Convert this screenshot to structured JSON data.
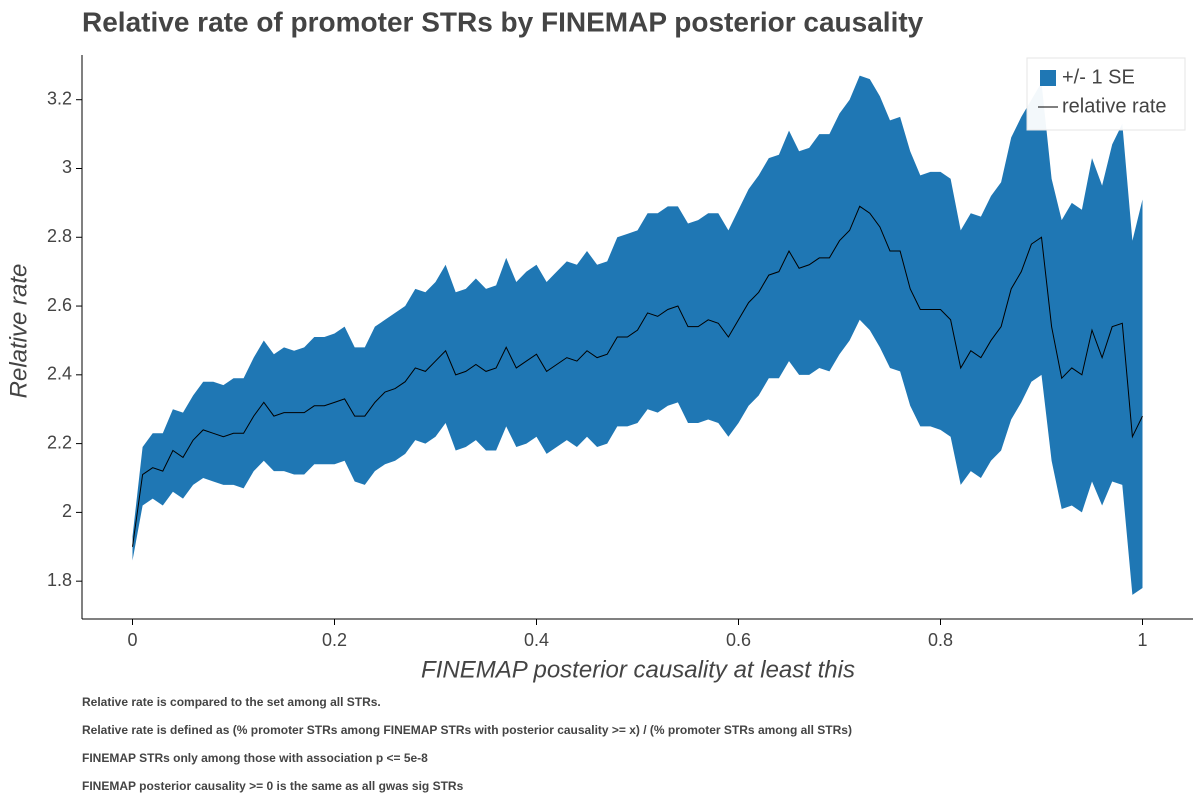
{
  "chart_data": {
    "type": "line",
    "title": "Relative rate of promoter STRs by FINEMAP posterior causality",
    "x_label": "FINEMAP posterior causality at least this",
    "y_label": "Relative rate",
    "notes": [
      "Relative rate is compared to the set among all STRs.",
      "Relative rate is defined as (% promoter STRs among FINEMAP STRs with posterior causality >= x) / (% promoter STRs among all STRs)",
      "FINEMAP STRs only among those with association p <= 5e-8",
      "FINEMAP posterior causality >= 0 is the same as all gwas sig STRs"
    ],
    "legend": "top-right",
    "xlim": [
      -0.05,
      1.05
    ],
    "ylim": [
      1.69,
      3.33
    ],
    "xticks": [
      0,
      0.2,
      0.4,
      0.6,
      0.8,
      1
    ],
    "yticks": [
      1.8,
      2,
      2.2,
      2.4,
      2.6,
      2.8,
      3,
      3.2
    ],
    "x": [
      0,
      0.01,
      0.02,
      0.03,
      0.04,
      0.05,
      0.06,
      0.07,
      0.08,
      0.09,
      0.1,
      0.11,
      0.12,
      0.13,
      0.14,
      0.15,
      0.16,
      0.17,
      0.18,
      0.19,
      0.2,
      0.21,
      0.22,
      0.23,
      0.24,
      0.25,
      0.26,
      0.27,
      0.28,
      0.29,
      0.3,
      0.31,
      0.32,
      0.33,
      0.34,
      0.35,
      0.36,
      0.37,
      0.38,
      0.39,
      0.4,
      0.41,
      0.42,
      0.43,
      0.44,
      0.45,
      0.46,
      0.47,
      0.48,
      0.49,
      0.5,
      0.51,
      0.52,
      0.53,
      0.54,
      0.55,
      0.56,
      0.57,
      0.58,
      0.59,
      0.6,
      0.61,
      0.62,
      0.63,
      0.64,
      0.65,
      0.66,
      0.67,
      0.68,
      0.69,
      0.7,
      0.71,
      0.72,
      0.73,
      0.74,
      0.75,
      0.76,
      0.77,
      0.78,
      0.79,
      0.8,
      0.81,
      0.82,
      0.83,
      0.84,
      0.85,
      0.86,
      0.87,
      0.88,
      0.89,
      0.9,
      0.91,
      0.92,
      0.93,
      0.94,
      0.95,
      0.96,
      0.97,
      0.98,
      0.99,
      1
    ],
    "series": [
      {
        "name": "+/- 1 SE",
        "color": "#1f77b4",
        "upper": [
          1.93,
          2.19,
          2.23,
          2.23,
          2.3,
          2.29,
          2.34,
          2.38,
          2.38,
          2.37,
          2.39,
          2.39,
          2.45,
          2.5,
          2.46,
          2.48,
          2.47,
          2.48,
          2.51,
          2.51,
          2.52,
          2.54,
          2.48,
          2.48,
          2.54,
          2.56,
          2.58,
          2.6,
          2.65,
          2.64,
          2.67,
          2.72,
          2.64,
          2.65,
          2.68,
          2.65,
          2.66,
          2.74,
          2.67,
          2.7,
          2.72,
          2.67,
          2.7,
          2.73,
          2.72,
          2.76,
          2.72,
          2.73,
          2.8,
          2.81,
          2.82,
          2.87,
          2.87,
          2.89,
          2.89,
          2.84,
          2.85,
          2.87,
          2.87,
          2.82,
          2.88,
          2.94,
          2.98,
          3.03,
          3.04,
          3.11,
          3.05,
          3.06,
          3.1,
          3.1,
          3.16,
          3.2,
          3.27,
          3.26,
          3.21,
          3.14,
          3.15,
          3.05,
          2.98,
          2.99,
          2.99,
          2.97,
          2.82,
          2.87,
          2.86,
          2.92,
          2.96,
          3.09,
          3.15,
          3.2,
          3.25,
          2.97,
          2.85,
          2.9,
          2.88,
          3.03,
          2.95,
          3.07,
          3.13,
          2.79,
          2.91
        ],
        "lower": [
          1.86,
          2.02,
          2.04,
          2.02,
          2.06,
          2.04,
          2.08,
          2.1,
          2.09,
          2.08,
          2.08,
          2.07,
          2.12,
          2.15,
          2.12,
          2.12,
          2.11,
          2.11,
          2.14,
          2.14,
          2.14,
          2.15,
          2.09,
          2.08,
          2.12,
          2.14,
          2.15,
          2.17,
          2.21,
          2.2,
          2.22,
          2.26,
          2.18,
          2.19,
          2.21,
          2.18,
          2.18,
          2.25,
          2.19,
          2.2,
          2.22,
          2.17,
          2.19,
          2.21,
          2.19,
          2.22,
          2.19,
          2.2,
          2.25,
          2.25,
          2.26,
          2.3,
          2.29,
          2.31,
          2.32,
          2.26,
          2.26,
          2.27,
          2.26,
          2.22,
          2.26,
          2.31,
          2.34,
          2.39,
          2.39,
          2.44,
          2.4,
          2.4,
          2.42,
          2.41,
          2.46,
          2.5,
          2.56,
          2.53,
          2.48,
          2.42,
          2.41,
          2.31,
          2.25,
          2.25,
          2.24,
          2.22,
          2.08,
          2.12,
          2.1,
          2.15,
          2.18,
          2.27,
          2.32,
          2.38,
          2.4,
          2.15,
          2.01,
          2.02,
          2.0,
          2.09,
          2.02,
          2.09,
          2.08,
          1.76,
          1.78
        ]
      },
      {
        "name": "relative rate",
        "color": "#000000",
        "values": [
          1.9,
          2.11,
          2.13,
          2.12,
          2.18,
          2.16,
          2.21,
          2.24,
          2.23,
          2.22,
          2.23,
          2.23,
          2.28,
          2.32,
          2.28,
          2.29,
          2.29,
          2.29,
          2.31,
          2.31,
          2.32,
          2.33,
          2.28,
          2.28,
          2.32,
          2.35,
          2.36,
          2.38,
          2.42,
          2.41,
          2.44,
          2.47,
          2.4,
          2.41,
          2.43,
          2.41,
          2.42,
          2.48,
          2.42,
          2.44,
          2.46,
          2.41,
          2.43,
          2.45,
          2.44,
          2.47,
          2.45,
          2.46,
          2.51,
          2.51,
          2.53,
          2.58,
          2.57,
          2.59,
          2.6,
          2.54,
          2.54,
          2.56,
          2.55,
          2.51,
          2.56,
          2.61,
          2.64,
          2.69,
          2.7,
          2.76,
          2.71,
          2.72,
          2.74,
          2.74,
          2.79,
          2.82,
          2.89,
          2.87,
          2.83,
          2.76,
          2.76,
          2.65,
          2.59,
          2.59,
          2.59,
          2.56,
          2.42,
          2.47,
          2.45,
          2.5,
          2.54,
          2.65,
          2.7,
          2.78,
          2.8,
          2.54,
          2.39,
          2.42,
          2.4,
          2.53,
          2.45,
          2.54,
          2.55,
          2.22,
          2.28
        ]
      }
    ]
  }
}
